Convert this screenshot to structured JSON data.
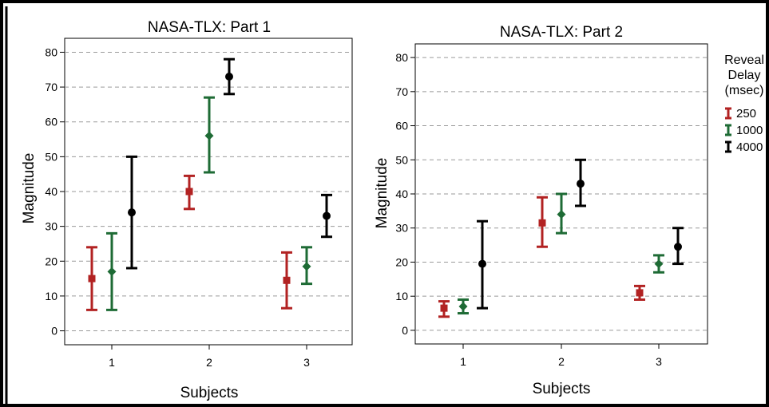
{
  "chart_data": [
    {
      "type": "errorbar",
      "title": "NASA-TLX: Part 1",
      "xlabel": "Subjects",
      "ylabel": "Magnitude",
      "categories": [
        "1",
        "2",
        "3"
      ],
      "ylim": [
        -4,
        84
      ],
      "yticks": [
        0,
        10,
        20,
        30,
        40,
        50,
        60,
        70,
        80
      ],
      "grid": "horizontal dashed",
      "series": [
        {
          "name": "250",
          "color": "#b22222",
          "marker": "square",
          "values": [
            {
              "subject": "1",
              "mean": 15,
              "low": 6,
              "high": 24
            },
            {
              "subject": "2",
              "mean": 40,
              "low": 35,
              "high": 44.5
            },
            {
              "subject": "3",
              "mean": 14.5,
              "low": 6.5,
              "high": 22.5
            }
          ]
        },
        {
          "name": "1000",
          "color": "#1e6b35",
          "marker": "diamond",
          "values": [
            {
              "subject": "1",
              "mean": 17,
              "low": 6,
              "high": 28
            },
            {
              "subject": "2",
              "mean": 56,
              "low": 45.5,
              "high": 67
            },
            {
              "subject": "3",
              "mean": 18.5,
              "low": 13.5,
              "high": 24
            }
          ]
        },
        {
          "name": "4000",
          "color": "#000000",
          "marker": "circle",
          "values": [
            {
              "subject": "1",
              "mean": 34,
              "low": 18,
              "high": 50
            },
            {
              "subject": "2",
              "mean": 73,
              "low": 68,
              "high": 78
            },
            {
              "subject": "3",
              "mean": 33,
              "low": 27,
              "high": 39
            }
          ]
        }
      ]
    },
    {
      "type": "errorbar",
      "title": "NASA-TLX: Part 2",
      "xlabel": "Subjects",
      "ylabel": "Magnitude",
      "categories": [
        "1",
        "2",
        "3"
      ],
      "ylim": [
        -4,
        84
      ],
      "yticks": [
        0,
        10,
        20,
        30,
        40,
        50,
        60,
        70,
        80
      ],
      "grid": "horizontal dashed",
      "series": [
        {
          "name": "250",
          "color": "#b22222",
          "marker": "square",
          "values": [
            {
              "subject": "1",
              "mean": 6.5,
              "low": 4,
              "high": 8.5
            },
            {
              "subject": "2",
              "mean": 31.5,
              "low": 24.5,
              "high": 39
            },
            {
              "subject": "3",
              "mean": 11,
              "low": 9,
              "high": 13
            }
          ]
        },
        {
          "name": "1000",
          "color": "#1e6b35",
          "marker": "diamond",
          "values": [
            {
              "subject": "1",
              "mean": 7,
              "low": 5,
              "high": 9
            },
            {
              "subject": "2",
              "mean": 34,
              "low": 28.5,
              "high": 40
            },
            {
              "subject": "3",
              "mean": 19.5,
              "low": 17,
              "high": 22
            }
          ]
        },
        {
          "name": "4000",
          "color": "#000000",
          "marker": "circle",
          "values": [
            {
              "subject": "1",
              "mean": 19.5,
              "low": 6.5,
              "high": 32
            },
            {
              "subject": "2",
              "mean": 43,
              "low": 36.5,
              "high": 50
            },
            {
              "subject": "3",
              "mean": 24.5,
              "low": 19.5,
              "high": 30
            }
          ]
        }
      ]
    }
  ],
  "legend": {
    "title_lines": [
      "Reveal",
      "Delay",
      "(msec)"
    ],
    "placement": "right",
    "items": [
      "250",
      "1000",
      "4000"
    ]
  }
}
